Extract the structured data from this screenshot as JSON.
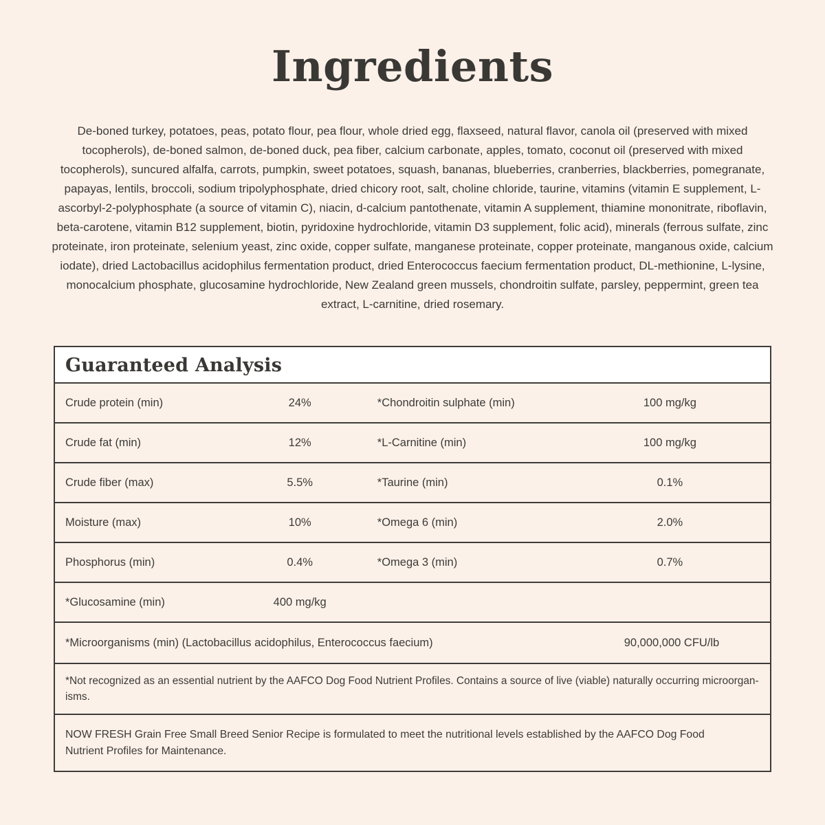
{
  "colors": {
    "page_background": "#FCF1E9",
    "table_header_background": "#FFFFFF",
    "border": "#3E3C39",
    "text": "#3B3A37"
  },
  "page": {
    "title": "Ingredients"
  },
  "ingredients_paragraph": "De-boned turkey, potatoes, peas, potato flour, pea flour, whole dried egg, flaxseed, natural flavor, canola oil (preserved with mixed tocopherols), de-boned salmon, de-boned duck, pea fiber, calcium carbonate, apples, tomato, coconut oil (preserved with mixed tocopherols), suncured alfalfa, carrots, pumpkin, sweet potatoes, squash, bananas, blueberries, cranberries, blackberries, pomegranate, papayas, lentils, broccoli, sodium tripolyphosphate, dried chicory root, salt, choline chloride, taurine, vitamins (vitamin E supplement, L-ascorbyl-2-polyphosphate (a source of vitamin C), niacin, d-calcium pantothenate, vitamin A supplement, thiamine mononitrate, riboflavin, beta-carotene, vitamin B12 supplement, biotin, pyridoxine hydrochloride, vitamin D3 supplement, folic acid), minerals (ferrous sulfate, zinc proteinate, iron proteinate, selenium yeast, zinc oxide, copper sulfate, manganese proteinate, copper proteinate, manganous oxide, calcium iodate), dried Lactobacillus acidophilus fermentation product, dried Enterococcus faecium fermentation product, DL-methionine, L-lysine, monocalcium phosphate, glucosamine hydrochloride, New Zealand green mussels, chondroitin sulfate, parsley, peppermint, green tea extract, L-carnitine, dried rosemary.",
  "guaranteed_analysis": {
    "title": "Guaranteed Analysis",
    "rows": [
      {
        "label_left": "Crude protein (min)",
        "value_left": "24%",
        "label_right": "*Chondroitin sulphate (min)",
        "value_right": "100 mg/kg"
      },
      {
        "label_left": "Crude fat (min)",
        "value_left": "12%",
        "label_right": "*L-Carnitine (min)",
        "value_right": "100 mg/kg"
      },
      {
        "label_left": "Crude fiber (max)",
        "value_left": "5.5%",
        "label_right": "*Taurine (min)",
        "value_right": "0.1%"
      },
      {
        "label_left": "Moisture (max)",
        "value_left": "10%",
        "label_right": "*Omega 6 (min)",
        "value_right": "2.0%"
      },
      {
        "label_left": "Phosphorus (min)",
        "value_left": "0.4%",
        "label_right": "*Omega 3 (min)",
        "value_right": "0.7%"
      }
    ],
    "glucosamine_row": {
      "label": "*Glucosamine (min)",
      "value": "400 mg/kg"
    },
    "microorganisms_row": {
      "label": "*Microorganisms (min) (Lactobacillus acidophilus, Enterococcus faecium)",
      "value": "90,000,000 CFU/lb"
    },
    "footnote_lines": [
      "*Not recognized as an essential nutrient by the AAFCO Dog Food Nutrient Profiles. Contains a source of live (viable) naturally occurring microorgan-",
      "isms."
    ],
    "aafco_statement_lines": [
      "NOW FRESH Grain Free Small Breed Senior Recipe is formulated to meet the nutritional levels established by the AAFCO Dog Food",
      "Nutrient Profiles for Maintenance."
    ]
  }
}
